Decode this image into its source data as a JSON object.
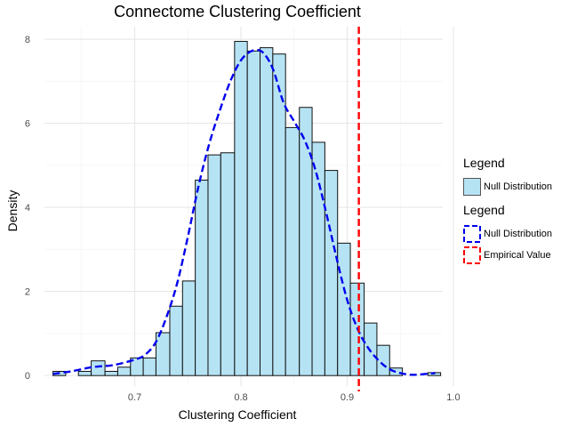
{
  "chart_data": {
    "type": "bar",
    "title": "Connectome Clustering Coefficient",
    "xlabel": "Clustering Coefficient",
    "ylabel": "Density",
    "xlim": [
      0.615,
      0.99
    ],
    "ylim": [
      -0.25,
      8.3
    ],
    "x_ticks": [
      "0.7",
      "0.8",
      "0.9",
      "1.0"
    ],
    "y_ticks": [
      "0",
      "2",
      "4",
      "6",
      "8"
    ],
    "bin_width": 0.0122,
    "bins": [
      {
        "x0": 0.623,
        "x1": 0.635,
        "density": 0.1
      },
      {
        "x0": 0.635,
        "x1": 0.647,
        "density": 0.0
      },
      {
        "x0": 0.647,
        "x1": 0.659,
        "density": 0.1
      },
      {
        "x0": 0.659,
        "x1": 0.672,
        "density": 0.35
      },
      {
        "x0": 0.672,
        "x1": 0.684,
        "density": 0.1
      },
      {
        "x0": 0.684,
        "x1": 0.696,
        "density": 0.2
      },
      {
        "x0": 0.696,
        "x1": 0.708,
        "density": 0.42
      },
      {
        "x0": 0.708,
        "x1": 0.72,
        "density": 0.42
      },
      {
        "x0": 0.72,
        "x1": 0.733,
        "density": 1.02
      },
      {
        "x0": 0.733,
        "x1": 0.745,
        "density": 1.65
      },
      {
        "x0": 0.745,
        "x1": 0.757,
        "density": 2.25
      },
      {
        "x0": 0.757,
        "x1": 0.769,
        "density": 4.65
      },
      {
        "x0": 0.769,
        "x1": 0.781,
        "density": 5.25
      },
      {
        "x0": 0.781,
        "x1": 0.794,
        "density": 5.3
      },
      {
        "x0": 0.794,
        "x1": 0.806,
        "density": 7.95
      },
      {
        "x0": 0.806,
        "x1": 0.818,
        "density": 7.72
      },
      {
        "x0": 0.818,
        "x1": 0.83,
        "density": 7.8
      },
      {
        "x0": 0.83,
        "x1": 0.842,
        "density": 7.65
      },
      {
        "x0": 0.842,
        "x1": 0.855,
        "density": 5.9
      },
      {
        "x0": 0.855,
        "x1": 0.867,
        "density": 6.38
      },
      {
        "x0": 0.867,
        "x1": 0.879,
        "density": 5.55
      },
      {
        "x0": 0.879,
        "x1": 0.891,
        "density": 4.88
      },
      {
        "x0": 0.891,
        "x1": 0.903,
        "density": 3.15
      },
      {
        "x0": 0.903,
        "x1": 0.916,
        "density": 2.2
      },
      {
        "x0": 0.916,
        "x1": 0.928,
        "density": 1.25
      },
      {
        "x0": 0.928,
        "x1": 0.94,
        "density": 0.72
      },
      {
        "x0": 0.94,
        "x1": 0.952,
        "density": 0.18
      },
      {
        "x0": 0.952,
        "x1": 0.964,
        "density": 0.0
      },
      {
        "x0": 0.964,
        "x1": 0.976,
        "density": 0.0
      },
      {
        "x0": 0.976,
        "x1": 0.988,
        "density": 0.07
      }
    ],
    "density_curve": {
      "name": "Null Distribution",
      "x": [
        0.623,
        0.64,
        0.66,
        0.68,
        0.7,
        0.71,
        0.72,
        0.73,
        0.74,
        0.75,
        0.76,
        0.77,
        0.78,
        0.79,
        0.8,
        0.81,
        0.82,
        0.83,
        0.84,
        0.85,
        0.86,
        0.87,
        0.88,
        0.89,
        0.9,
        0.91,
        0.92,
        0.93,
        0.94,
        0.95,
        0.96,
        0.97,
        0.983
      ],
      "y": [
        0.04,
        0.1,
        0.2,
        0.25,
        0.38,
        0.5,
        0.8,
        1.4,
        2.2,
        3.3,
        4.5,
        5.5,
        6.3,
        7.0,
        7.5,
        7.72,
        7.7,
        7.3,
        6.5,
        6.05,
        5.6,
        4.9,
        3.9,
        2.8,
        1.8,
        1.1,
        0.65,
        0.35,
        0.15,
        0.06,
        0.02,
        0.03,
        0.06
      ]
    },
    "empirical_value": 0.911,
    "grid": true,
    "legend_position": "right",
    "colors": {
      "bar_fill": "#b6e3f4",
      "bar_stroke": "#111111",
      "density_line": "#0000ee",
      "empirical_line": "#ff0000",
      "grid": "#e5e5e5"
    }
  },
  "legends": [
    {
      "title": "Legend",
      "items": [
        {
          "label": "Null Distribution",
          "key": "fill"
        }
      ]
    },
    {
      "title": "Legend",
      "items": [
        {
          "label": "Null Distribution",
          "key": "dash-blue"
        },
        {
          "label": "Empirical Value",
          "key": "dash-red"
        }
      ]
    }
  ]
}
